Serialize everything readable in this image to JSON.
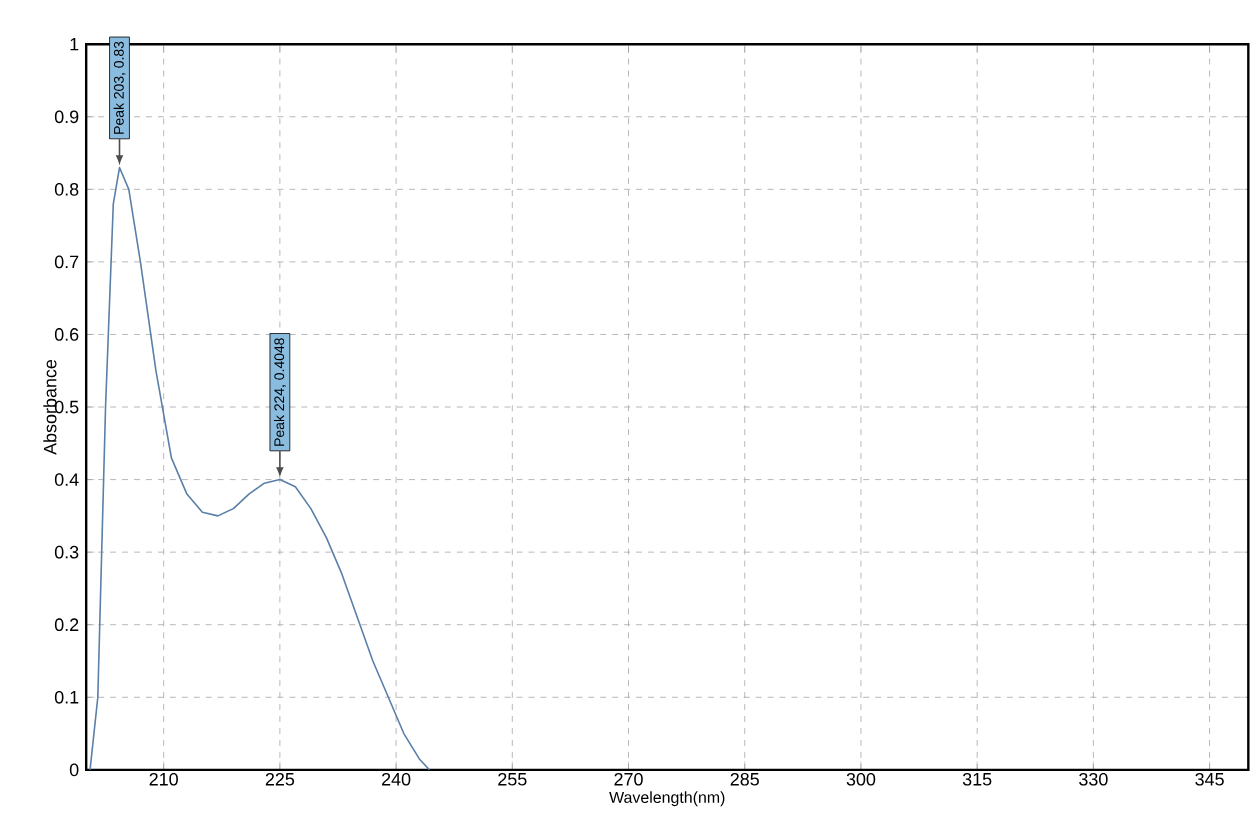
{
  "chart_data": {
    "type": "line",
    "xlabel": "Wavelength(nm)",
    "ylabel": "Absorbance",
    "x": [
      200.5,
      201.5,
      202.5,
      203.5,
      204.3,
      205.5,
      207,
      209,
      211,
      213,
      215,
      217,
      219,
      221,
      223,
      225,
      227,
      229,
      231,
      233,
      235,
      237,
      239,
      241,
      243,
      244.3
    ],
    "values": [
      0,
      0.1,
      0.5,
      0.78,
      0.83,
      0.8,
      0.7,
      0.55,
      0.43,
      0.38,
      0.355,
      0.35,
      0.36,
      0.38,
      0.395,
      0.4,
      0.39,
      0.36,
      0.32,
      0.27,
      0.21,
      0.15,
      0.1,
      0.05,
      0.015,
      0
    ],
    "color": "#5a7fa8",
    "xlim": [
      200,
      350
    ],
    "xticks": [
      210,
      225,
      240,
      255,
      270,
      285,
      300,
      315,
      330,
      345
    ],
    "ylim": [
      0,
      1
    ],
    "yticks": [
      0,
      0.1,
      0.2,
      0.3,
      0.4,
      0.5,
      0.6,
      0.7,
      0.8,
      0.9,
      1
    ],
    "grid": true,
    "annotations": [
      {
        "text": "Peak 203, 0.83",
        "x": 204.3,
        "y": 0.83
      },
      {
        "text": "Peak 224, 0.4048",
        "x": 225,
        "y": 0.4
      }
    ]
  }
}
